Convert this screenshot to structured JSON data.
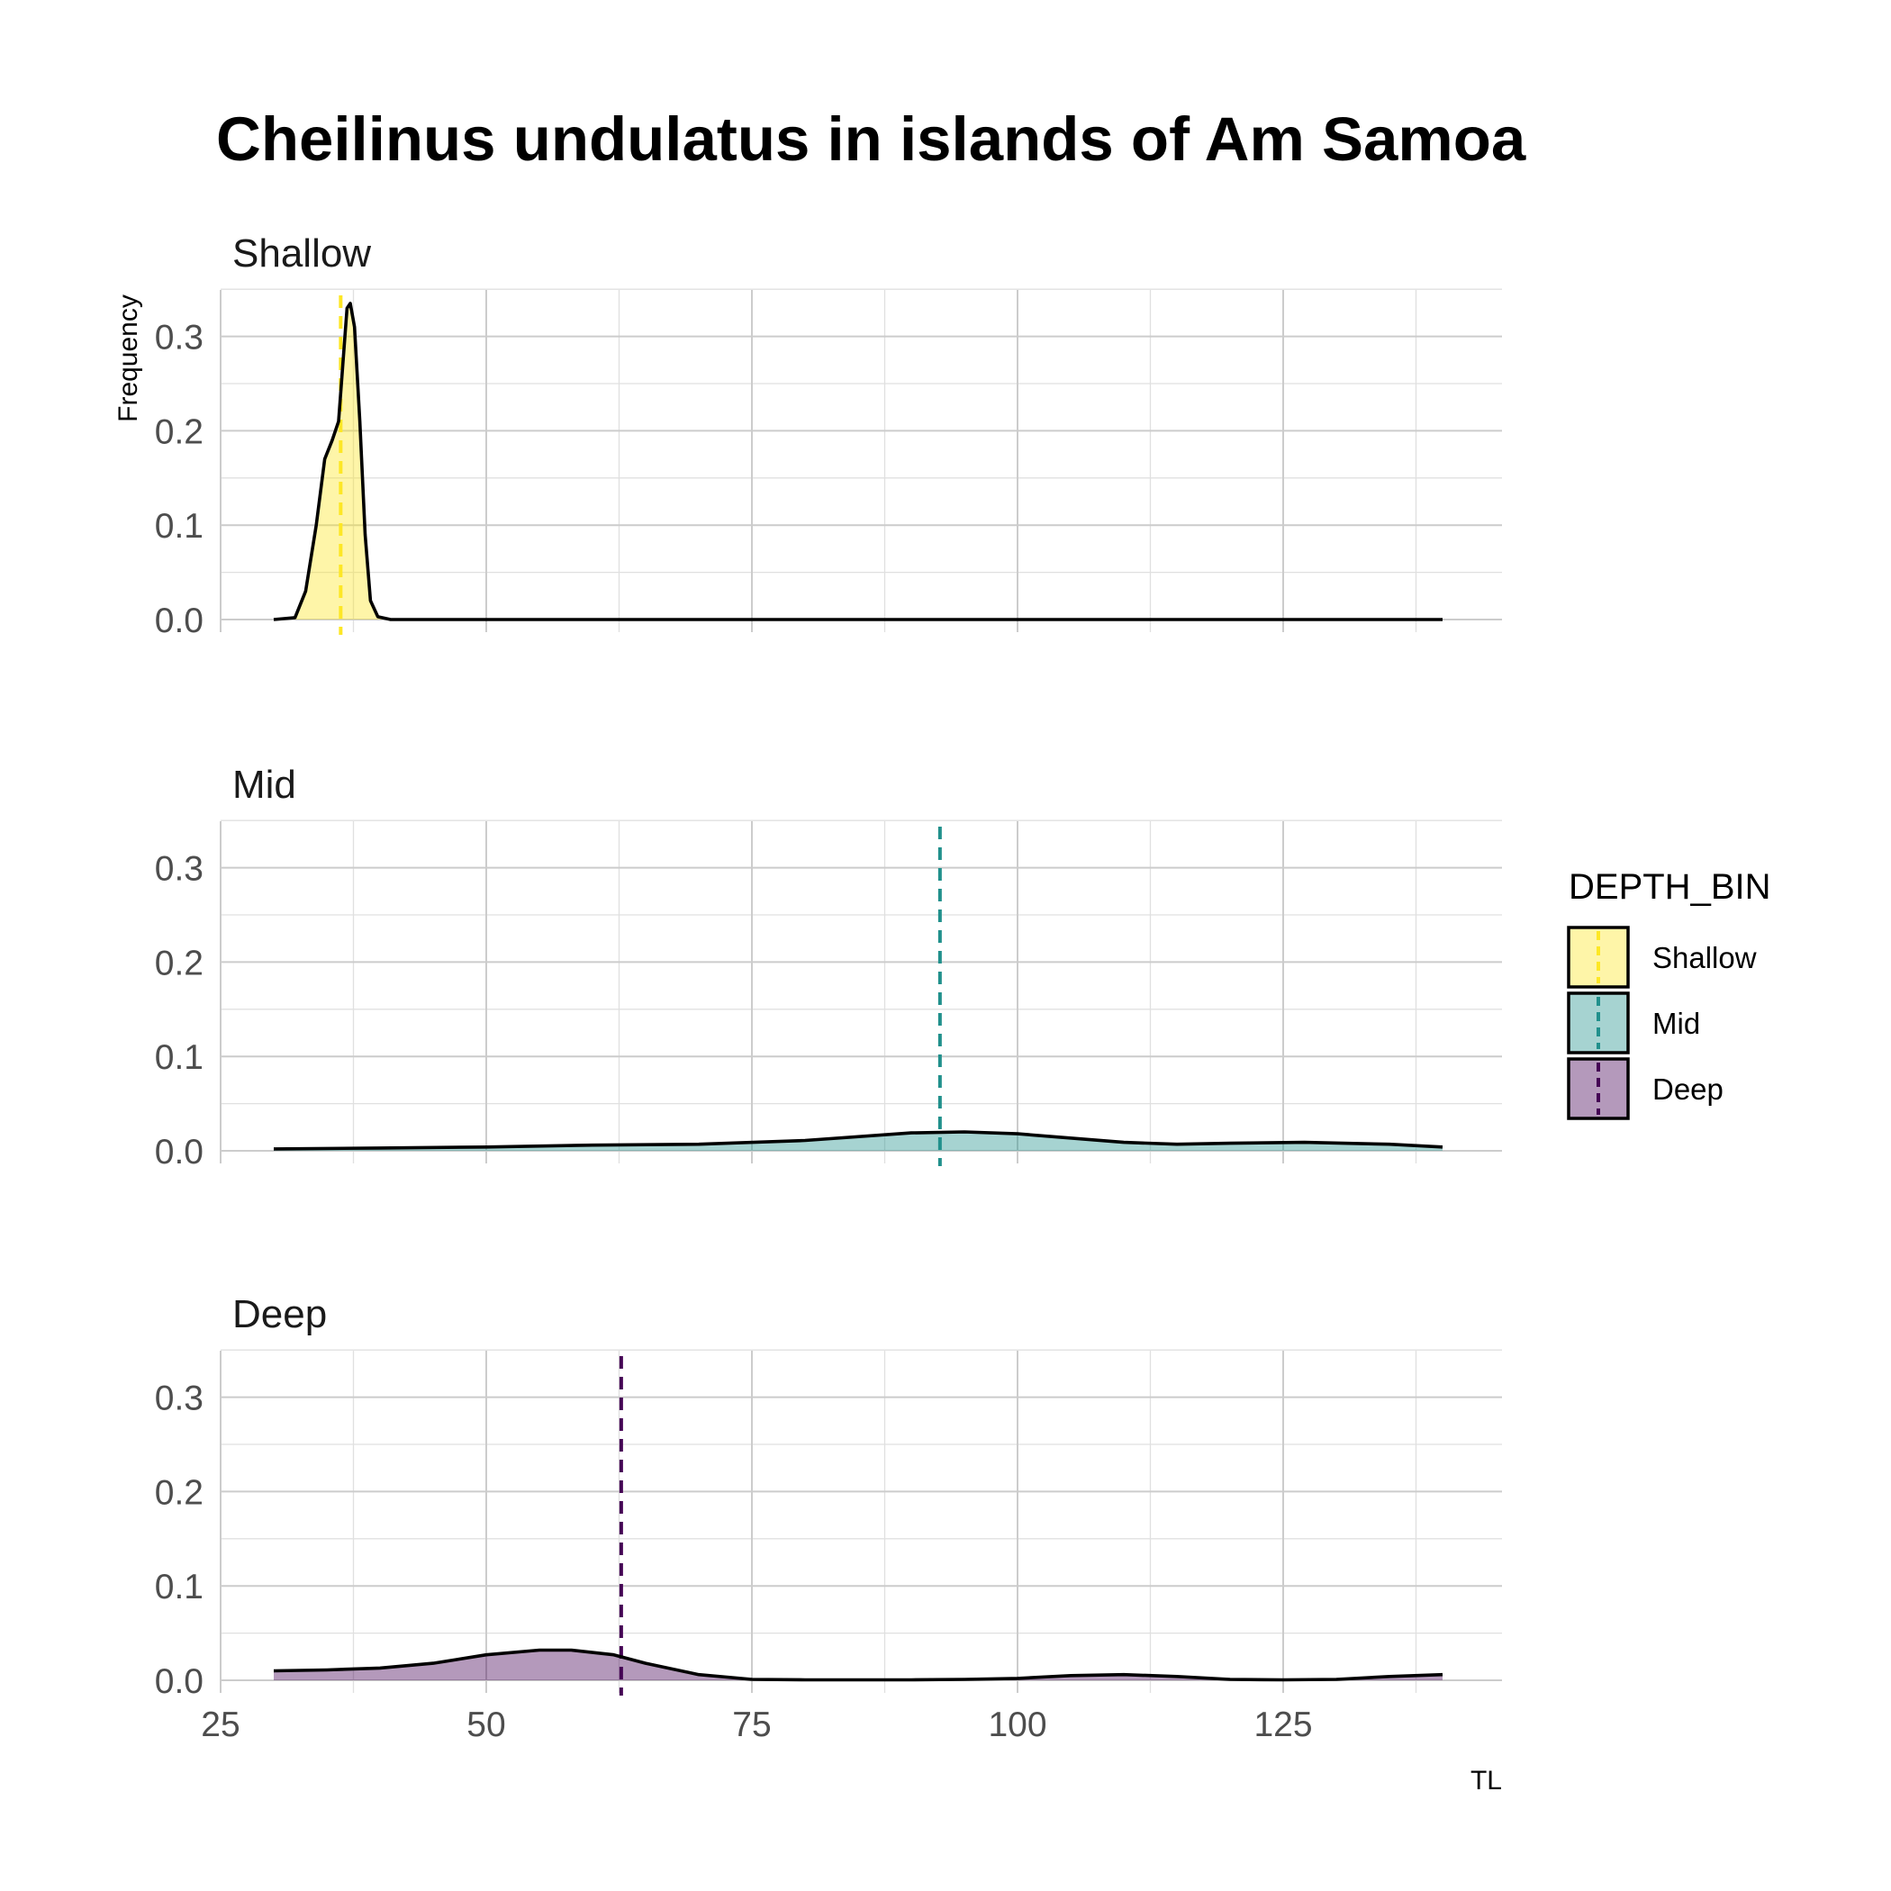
{
  "chart_data": {
    "type": "area",
    "title": "Cheilinus undulatus in islands of Am Samoa",
    "xlabel": "TL",
    "ylabel": "Frequency",
    "xlim": [
      25,
      145
    ],
    "ylim": [
      0,
      0.35
    ],
    "x_ticks": [
      25,
      50,
      75,
      100,
      125
    ],
    "x_tick_labels": [
      "25",
      "50",
      "75",
      "100",
      "125"
    ],
    "y_ticks": [
      0,
      0.1,
      0.2,
      0.3
    ],
    "y_tick_labels": [
      "0.0",
      "0.1",
      "0.2",
      "0.3"
    ],
    "grid": true,
    "legend": {
      "title": "DEPTH_BIN",
      "position": "right",
      "entries": [
        "Shallow",
        "Mid",
        "Deep"
      ]
    },
    "colors": {
      "Shallow": "#FDE725",
      "Mid": "#21908C",
      "Deep": "#440154"
    },
    "panels": [
      {
        "name": "Shallow",
        "mean_line": 36.3,
        "points": [
          [
            30,
            0
          ],
          [
            32,
            0.002
          ],
          [
            33,
            0.03
          ],
          [
            34,
            0.1
          ],
          [
            34.8,
            0.17
          ],
          [
            35.5,
            0.19
          ],
          [
            36.1,
            0.21
          ],
          [
            36.5,
            0.27
          ],
          [
            36.9,
            0.33
          ],
          [
            37.2,
            0.335
          ],
          [
            37.6,
            0.31
          ],
          [
            38.1,
            0.21
          ],
          [
            38.6,
            0.09
          ],
          [
            39.1,
            0.02
          ],
          [
            39.8,
            0.003
          ],
          [
            41,
            0
          ],
          [
            50,
            0
          ],
          [
            60,
            0
          ],
          [
            75,
            0
          ],
          [
            100,
            0
          ],
          [
            125,
            0
          ],
          [
            140,
            0
          ]
        ]
      },
      {
        "name": "Mid",
        "mean_line": 92.7,
        "points": [
          [
            30,
            0.002
          ],
          [
            40,
            0.003
          ],
          [
            50,
            0.004
          ],
          [
            60,
            0.006
          ],
          [
            70,
            0.007
          ],
          [
            80,
            0.011
          ],
          [
            90,
            0.019
          ],
          [
            95,
            0.02
          ],
          [
            100,
            0.018
          ],
          [
            110,
            0.009
          ],
          [
            115,
            0.007
          ],
          [
            120,
            0.008
          ],
          [
            127,
            0.009
          ],
          [
            135,
            0.007
          ],
          [
            140,
            0.004
          ]
        ]
      },
      {
        "name": "Deep",
        "mean_line": 62.7,
        "points": [
          [
            30,
            0.01
          ],
          [
            35,
            0.011
          ],
          [
            40,
            0.013
          ],
          [
            45,
            0.018
          ],
          [
            50,
            0.027
          ],
          [
            55,
            0.032
          ],
          [
            58,
            0.032
          ],
          [
            62,
            0.027
          ],
          [
            65,
            0.018
          ],
          [
            70,
            0.006
          ],
          [
            75,
            0.001
          ],
          [
            80,
            0.0005
          ],
          [
            90,
            0.0005
          ],
          [
            95,
            0.001
          ],
          [
            100,
            0.002
          ],
          [
            105,
            0.005
          ],
          [
            110,
            0.006
          ],
          [
            115,
            0.004
          ],
          [
            120,
            0.001
          ],
          [
            125,
            0.0005
          ],
          [
            130,
            0.001
          ],
          [
            135,
            0.004
          ],
          [
            140,
            0.006
          ]
        ]
      }
    ]
  }
}
